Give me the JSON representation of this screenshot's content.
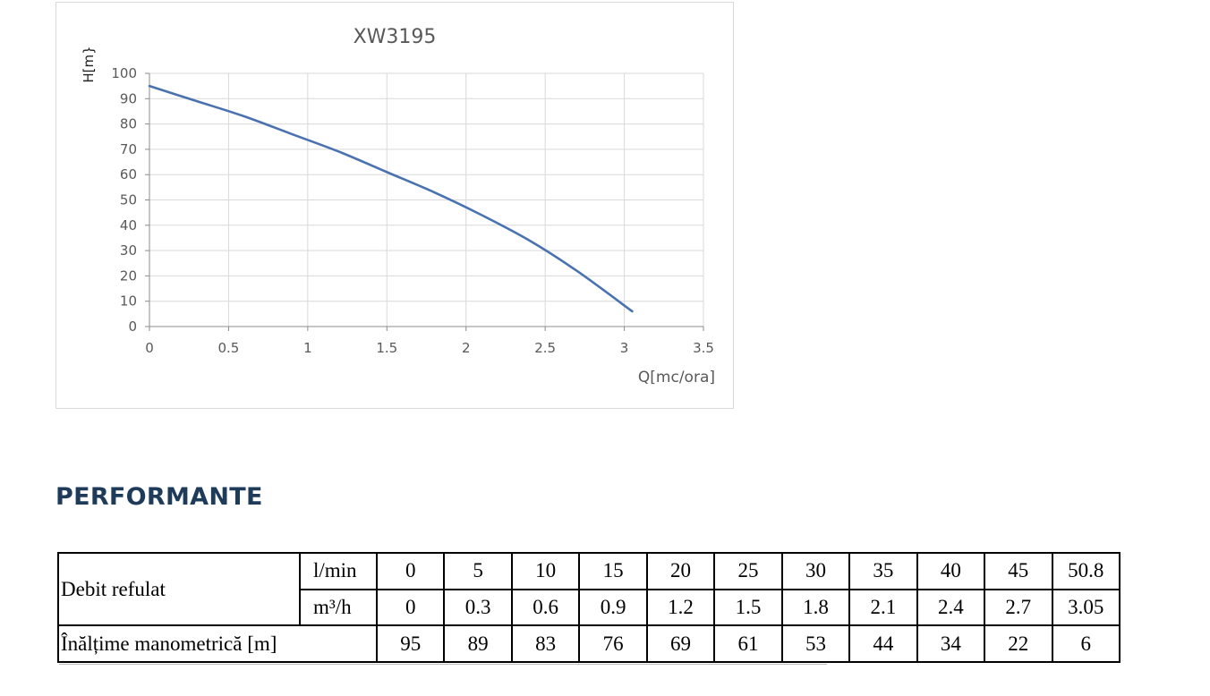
{
  "chart_data": {
    "type": "line",
    "title": "XW3195",
    "xlabel": "Q[mc/ora]",
    "ylabel": "H[m}",
    "xlim": [
      0,
      3.5
    ],
    "ylim": [
      0,
      100
    ],
    "xticks": [
      "0",
      "0.5",
      "1",
      "1.5",
      "2",
      "2.5",
      "3",
      "3.5"
    ],
    "yticks": [
      "0",
      "10",
      "20",
      "30",
      "40",
      "50",
      "60",
      "70",
      "80",
      "90",
      "100"
    ],
    "grid": true,
    "line_color": "#4a72b0",
    "series": [
      {
        "x": [
          0,
          0.3,
          0.6,
          0.9,
          1.2,
          1.5,
          1.8,
          2.1,
          2.4,
          2.7,
          3.05
        ],
        "y": [
          95,
          89,
          83,
          76,
          69,
          61,
          53,
          44,
          34,
          22,
          6
        ]
      }
    ]
  },
  "section": {
    "heading": "PERFORMANTE"
  },
  "table": {
    "row_label_flow": "Debit refulat",
    "unit_lmin": "l/min",
    "unit_m3h": "m³/h",
    "row_label_head": "Înălțime manometrică [m]",
    "lmin": [
      "0",
      "5",
      "10",
      "15",
      "20",
      "25",
      "30",
      "35",
      "40",
      "45",
      "50.8"
    ],
    "m3h": [
      "0",
      "0.3",
      "0.6",
      "0.9",
      "1.2",
      "1.5",
      "1.8",
      "2.1",
      "2.4",
      "2.7",
      "3.05"
    ],
    "head": [
      "95",
      "89",
      "83",
      "76",
      "69",
      "61",
      "53",
      "44",
      "34",
      "22",
      "6"
    ]
  }
}
